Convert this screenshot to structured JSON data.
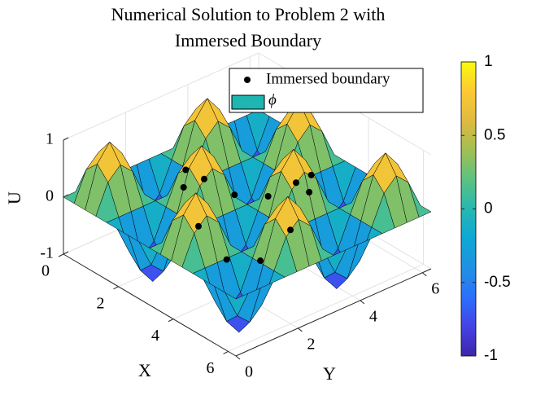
{
  "chart_data": {
    "type": "surface",
    "title": [
      "Numerical Solution to Problem 2 with",
      "Immersed Boundary"
    ],
    "xlabel": "X",
    "ylabel": "Y",
    "zlabel": "U",
    "x": [
      0,
      0.39,
      0.79,
      1.18,
      1.57,
      1.96,
      2.36,
      2.75,
      3.14,
      3.53,
      3.93,
      4.32,
      4.71,
      5.11,
      5.5,
      5.89,
      6.28
    ],
    "y": [
      0,
      0.39,
      0.79,
      1.18,
      1.57,
      1.96,
      2.36,
      2.75,
      3.14,
      3.53,
      3.93,
      4.32,
      4.71,
      5.11,
      5.5,
      5.89,
      6.28
    ],
    "xlim": [
      0,
      6.28
    ],
    "ylim": [
      0,
      6.28
    ],
    "zlim": [
      -1,
      1
    ],
    "xticks": [
      0,
      2,
      4,
      6
    ],
    "yticks": [
      0,
      2,
      4,
      6
    ],
    "zticks": [
      -1,
      0,
      1
    ],
    "grid": true,
    "clim": [
      -1,
      1
    ],
    "colorbar_ticks": [
      -1,
      -0.5,
      0,
      0.5,
      1
    ],
    "colormap": [
      "#3d26a8",
      "#4542e6",
      "#2b70fc",
      "#2191e3",
      "#0da8d4",
      "#26b8b0",
      "#5cc282",
      "#a1bf52",
      "#e0ba40",
      "#fcc933",
      "#fafa0d"
    ],
    "legend_position": "top right",
    "series": [
      {
        "name": "Immersed boundary",
        "type": "scatter",
        "color": "#000000",
        "x": [
          4.71,
          4.5,
          3.93,
          3.14,
          2.36,
          1.78,
          1.57,
          1.78,
          2.36,
          3.14,
          3.93,
          4.5
        ],
        "y": [
          3.14,
          3.93,
          4.5,
          4.71,
          4.5,
          3.93,
          3.14,
          2.36,
          1.78,
          1.57,
          1.78,
          2.36
        ],
        "z": [
          0,
          0.41,
          0.41,
          0,
          -0.41,
          -0.41,
          0,
          0.41,
          0.41,
          0,
          -0.41,
          -0.41
        ]
      },
      {
        "name": "ϕ",
        "type": "surface",
        "color": "#1fb5b0",
        "edge_color": "#000000",
        "z": [
          [
            0,
            0,
            0,
            0,
            0,
            0,
            0,
            0,
            0,
            0,
            0,
            0,
            0,
            0,
            0,
            0,
            0
          ],
          [
            0,
            0.5,
            0.71,
            0.5,
            0,
            -0.5,
            -0.71,
            -0.5,
            0,
            0.5,
            0.71,
            0.5,
            0,
            -0.5,
            -0.71,
            -0.5,
            0
          ],
          [
            0,
            0.71,
            1,
            0.71,
            0,
            -0.71,
            -1,
            -0.71,
            0,
            0.71,
            1,
            0.71,
            0,
            -0.71,
            -1,
            -0.71,
            0
          ],
          [
            0,
            0.5,
            0.71,
            0.5,
            0,
            -0.5,
            -0.71,
            -0.5,
            0,
            0.5,
            0.71,
            0.5,
            0,
            -0.5,
            -0.71,
            -0.5,
            0
          ],
          [
            0,
            0,
            0,
            0,
            0,
            0,
            0,
            0,
            0,
            0,
            0,
            0,
            0,
            0,
            0,
            0,
            0
          ],
          [
            0,
            -0.5,
            -0.71,
            -0.5,
            0,
            0.5,
            0.71,
            0.5,
            0,
            -0.5,
            -0.71,
            -0.5,
            0,
            0.5,
            0.71,
            0.5,
            0
          ],
          [
            0,
            -0.71,
            -1,
            -0.71,
            0,
            0.71,
            1,
            0.71,
            0,
            -0.71,
            -1,
            -0.71,
            0,
            0.71,
            1,
            0.71,
            0
          ],
          [
            0,
            -0.5,
            -0.71,
            -0.5,
            0,
            0.5,
            0.71,
            0.5,
            0,
            -0.5,
            -0.71,
            -0.5,
            0,
            0.5,
            0.71,
            0.5,
            0
          ],
          [
            0,
            0,
            0,
            0,
            0,
            0,
            0,
            0,
            0,
            0,
            0,
            0,
            0,
            0,
            0,
            0,
            0
          ],
          [
            0,
            0.5,
            0.71,
            0.5,
            0,
            -0.5,
            -0.71,
            -0.5,
            0,
            0.5,
            0.71,
            0.5,
            0,
            -0.5,
            -0.71,
            -0.5,
            0
          ],
          [
            0,
            0.71,
            1,
            0.71,
            0,
            -0.71,
            -1,
            -0.71,
            0,
            0.71,
            1,
            0.71,
            0,
            -0.71,
            -1,
            -0.71,
            0
          ],
          [
            0,
            0.5,
            0.71,
            0.5,
            0,
            -0.5,
            -0.71,
            -0.5,
            0,
            0.5,
            0.71,
            0.5,
            0,
            -0.5,
            -0.71,
            -0.5,
            0
          ],
          [
            0,
            0,
            0,
            0,
            0,
            0,
            0,
            0,
            0,
            0,
            0,
            0,
            0,
            0,
            0,
            0,
            0
          ],
          [
            0,
            -0.5,
            -0.71,
            -0.5,
            0,
            0.5,
            0.71,
            0.5,
            0,
            -0.5,
            -0.71,
            -0.5,
            0,
            0.5,
            0.71,
            0.5,
            0
          ],
          [
            0,
            -0.71,
            -1,
            -0.71,
            0,
            0.71,
            1,
            0.71,
            0,
            -0.71,
            -1,
            -0.71,
            0,
            0.71,
            1,
            0.71,
            0
          ],
          [
            0,
            -0.5,
            -0.71,
            -0.5,
            0,
            0.5,
            0.71,
            0.5,
            0,
            -0.5,
            -0.71,
            -0.5,
            0,
            0.5,
            0.71,
            0.5,
            0
          ],
          [
            0,
            0,
            0,
            0,
            0,
            0,
            0,
            0,
            0,
            0,
            0,
            0,
            0,
            0,
            0,
            0,
            0
          ]
        ]
      }
    ]
  }
}
